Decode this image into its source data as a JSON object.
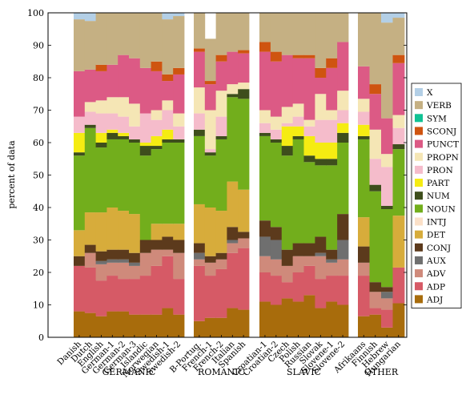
{
  "chart_data": {
    "type": "bar",
    "stacked": true,
    "ylabel": "percent of data",
    "ylim": [
      0,
      100
    ],
    "yticks": [
      0,
      10,
      20,
      30,
      40,
      50,
      60,
      70,
      80,
      90,
      100
    ],
    "grid": false,
    "legend_position": "right",
    "categories": [
      "ADJ",
      "ADP",
      "ADV",
      "AUX",
      "CONJ",
      "DET",
      "INTJ",
      "NOUN",
      "NUM",
      "PART",
      "PRON",
      "PROPN",
      "PUNCT",
      "SCONJ",
      "SYM",
      "VERB",
      "X"
    ],
    "colors": {
      "ADJ": "#a86c0c",
      "ADP": "#d65a66",
      "ADV": "#cf8a7b",
      "AUX": "#6f6f6f",
      "CONJ": "#5c3a1c",
      "DET": "#d7ac3b",
      "INTJ": "#fbe0c8",
      "NOUN": "#72ae1c",
      "NUM": "#3e4e1c",
      "PART": "#f5ec12",
      "PRON": "#f5bccb",
      "PROPN": "#f5e6b5",
      "PUNCT": "#dc5a85",
      "SCONJ": "#cf5410",
      "SYM": "#10c294",
      "VERB": "#c5b083",
      "X": "#b3cfe6"
    },
    "legend_entries": [
      "X",
      "VERB",
      "SYM",
      "SCONJ",
      "PUNCT",
      "PROPN",
      "PRON",
      "PART",
      "NUM",
      "NOUN",
      "INTJ",
      "DET",
      "CONJ",
      "AUX",
      "ADV",
      "ADP",
      "ADJ"
    ],
    "groups": [
      {
        "label": "GERMANIC",
        "languages": [
          "Danish",
          "Dutch",
          "English",
          "German-1",
          "German-2",
          "German-3",
          "Islandic",
          "Norwegian",
          "Swedish-1",
          "Swedish-2"
        ]
      },
      {
        "label": "ROMANIC",
        "languages": [
          "B-Portug.",
          "French-1",
          "French-2",
          "Italian",
          "Spanish"
        ]
      },
      {
        "label": "SLAVIC",
        "languages": [
          "Croatian-1",
          "Croatian-2",
          "Czech",
          "Polish",
          "Russian",
          "Slovak",
          "Slovene-1",
          "Slovene-2"
        ]
      },
      {
        "label": "OTHER",
        "languages": [
          "Afrikaans",
          "Finnish",
          "Hebrew",
          "Hungarian"
        ]
      }
    ],
    "series": [
      {
        "name": "Danish",
        "values": {
          "ADJ": 8,
          "ADP": 14,
          "ADV": 0,
          "AUX": 0,
          "CONJ": 3,
          "DET": 8,
          "INTJ": 0,
          "NOUN": 23,
          "NUM": 1,
          "PART": 6,
          "PRON": 5,
          "PROPN": 0,
          "PUNCT": 14,
          "SCONJ": 0,
          "SYM": 0,
          "VERB": 16,
          "X": 2
        }
      },
      {
        "name": "Dutch",
        "values": {
          "ADJ": 7.5,
          "ADP": 14,
          "ADV": 4.5,
          "AUX": 0,
          "CONJ": 2.5,
          "DET": 10,
          "INTJ": 0,
          "NOUN": 26,
          "NUM": 1,
          "PART": 0,
          "PRON": 4,
          "PROPN": 3,
          "PUNCT": 10,
          "SCONJ": 0,
          "SYM": 0,
          "VERB": 15,
          "X": 2.5
        }
      },
      {
        "name": "English",
        "values": {
          "ADJ": 6.5,
          "ADP": 11,
          "ADV": 5,
          "AUX": 1,
          "CONJ": 3,
          "DET": 12,
          "INTJ": 0,
          "NOUN": 20,
          "NUM": 1.5,
          "PART": 3,
          "PRON": 6,
          "PROPN": 4,
          "PUNCT": 9,
          "SCONJ": 2,
          "SYM": 0,
          "VERB": 16,
          "X": 0
        }
      },
      {
        "name": "German-1",
        "values": {
          "ADJ": 8,
          "ADP": 11,
          "ADV": 4,
          "AUX": 1,
          "CONJ": 3,
          "DET": 13,
          "INTJ": 0,
          "NOUN": 21,
          "NUM": 2,
          "PART": 1,
          "PRON": 5,
          "PROPN": 5,
          "PUNCT": 10,
          "SCONJ": 0,
          "SYM": 0,
          "VERB": 16,
          "X": 0
        }
      },
      {
        "name": "German-2",
        "values": {
          "ADJ": 8,
          "ADP": 10,
          "ADV": 5,
          "AUX": 1,
          "CONJ": 3,
          "DET": 12,
          "INTJ": 0,
          "NOUN": 22,
          "NUM": 1,
          "PART": 1,
          "PRON": 5,
          "PROPN": 6,
          "PUNCT": 13,
          "SCONJ": 0,
          "SYM": 0,
          "VERB": 13,
          "X": 0
        }
      },
      {
        "name": "German-3",
        "values": {
          "ADJ": 7,
          "ADP": 11,
          "ADV": 4,
          "AUX": 1,
          "CONJ": 3,
          "DET": 12,
          "INTJ": 0,
          "NOUN": 22,
          "NUM": 1,
          "PART": 0,
          "PRON": 4,
          "PROPN": 7,
          "PUNCT": 14,
          "SCONJ": 0,
          "SYM": 0,
          "VERB": 14,
          "X": 0
        }
      },
      {
        "name": "Islandic",
        "values": {
          "ADJ": 7,
          "ADP": 12,
          "ADV": 7,
          "AUX": 0,
          "CONJ": 4,
          "DET": 0,
          "INTJ": 0,
          "NOUN": 26,
          "NUM": 3,
          "PART": 1,
          "PRON": 9,
          "PROPN": 0,
          "PUNCT": 14,
          "SCONJ": 0,
          "SYM": 0,
          "VERB": 17,
          "X": 0
        }
      },
      {
        "name": "Norwegian",
        "values": {
          "ADJ": 7,
          "ADP": 15,
          "ADV": 5,
          "AUX": 0,
          "CONJ": 3,
          "DET": 5,
          "INTJ": 0,
          "NOUN": 23,
          "NUM": 1,
          "PART": 3,
          "PRON": 5,
          "PROPN": 3,
          "PUNCT": 12,
          "SCONJ": 3,
          "SYM": 0,
          "VERB": 15,
          "X": 0
        }
      },
      {
        "name": "Swedish-1",
        "values": {
          "ADJ": 9,
          "ADP": 16,
          "ADV": 2,
          "AUX": 0,
          "CONJ": 4,
          "DET": 4,
          "INTJ": 0,
          "NOUN": 25,
          "NUM": 1,
          "PART": 3,
          "PRON": 6,
          "PROPN": 3,
          "PUNCT": 6,
          "SCONJ": 2,
          "SYM": 0,
          "VERB": 17,
          "X": 2
        }
      },
      {
        "name": "Swedish-2",
        "values": {
          "ADJ": 7,
          "ADP": 11,
          "ADV": 8,
          "AUX": 0,
          "CONJ": 4,
          "DET": 5,
          "INTJ": 0,
          "NOUN": 25,
          "NUM": 1,
          "PART": 0,
          "PRON": 4,
          "PROPN": 4,
          "PUNCT": 12,
          "SCONJ": 2,
          "SYM": 0,
          "VERB": 16,
          "X": 1
        }
      },
      {
        "name": "B-Portug.",
        "values": {
          "ADJ": 5,
          "ADP": 17,
          "ADV": 2,
          "AUX": 2,
          "CONJ": 3,
          "DET": 12,
          "INTJ": 0,
          "NOUN": 21,
          "NUM": 2,
          "PART": 0,
          "PRON": 5,
          "PROPN": 8,
          "PUNCT": 11,
          "SCONJ": 1,
          "SYM": 0,
          "VERB": 11,
          "X": 0
        }
      },
      {
        "name": "French-1",
        "values": {
          "ADJ": 6,
          "ADP": 13,
          "ADV": 4,
          "AUX": 0,
          "CONJ": 2,
          "DET": 15,
          "INTJ": 0,
          "NOUN": 16,
          "NUM": 1,
          "PART": 0,
          "PRON": 1,
          "PROPN": 12,
          "PUNCT": 8,
          "SCONJ": 1,
          "SYM": 0,
          "VERB": 13,
          "X": 0
        }
      },
      {
        "name": "French-2",
        "values": {
          "ADJ": 6,
          "ADP": 15,
          "ADV": 3,
          "AUX": 0,
          "CONJ": 2,
          "DET": 13,
          "INTJ": 0,
          "NOUN": 22,
          "NUM": 1,
          "PART": 0,
          "PRON": 6,
          "PROPN": 8,
          "PUNCT": 9,
          "SCONJ": 2,
          "SYM": 0,
          "VERB": 13,
          "X": 0
        }
      },
      {
        "name": "Italian",
        "values": {
          "ADJ": 9,
          "ADP": 17,
          "ADV": 3,
          "AUX": 1,
          "CONJ": 4,
          "DET": 14,
          "INTJ": 0,
          "NOUN": 26,
          "NUM": 1,
          "PART": 0,
          "PRON": 0,
          "PROPN": 3,
          "PUNCT": 10,
          "SCONJ": 0,
          "SYM": 0,
          "VERB": 12,
          "X": 0
        }
      },
      {
        "name": "Spanish",
        "values": {
          "ADJ": 8.5,
          "ADP": 19,
          "ADV": 3,
          "AUX": 0,
          "CONJ": 2,
          "DET": 13,
          "INTJ": 0,
          "NOUN": 28,
          "NUM": 3,
          "PART": 0,
          "PRON": 0,
          "PROPN": 2,
          "PUNCT": 9,
          "SCONJ": 1,
          "SYM": 0,
          "VERB": 11.5,
          "X": 0
        }
      },
      {
        "name": "Croatian-1",
        "values": {
          "ADJ": 11,
          "ADP": 9,
          "ADV": 5,
          "AUX": 6,
          "CONJ": 5,
          "DET": 0,
          "INTJ": 0,
          "NOUN": 26,
          "NUM": 1,
          "PART": 0,
          "PRON": 3,
          "PROPN": 4,
          "PUNCT": 18,
          "SCONJ": 3,
          "SYM": 0,
          "VERB": 9,
          "X": 0
        }
      },
      {
        "name": "Croatian-2",
        "values": {
          "ADJ": 10,
          "ADP": 9,
          "ADV": 5,
          "AUX": 6,
          "CONJ": 4,
          "DET": 0,
          "INTJ": 0,
          "NOUN": 26,
          "NUM": 1,
          "PART": 0,
          "PRON": 3,
          "PROPN": 4,
          "PUNCT": 17,
          "SCONJ": 3,
          "SYM": 0,
          "VERB": 12,
          "X": 0
        }
      },
      {
        "name": "Czech",
        "values": {
          "ADJ": 12,
          "ADP": 5,
          "ADV": 5,
          "AUX": 0,
          "CONJ": 5,
          "DET": 0,
          "INTJ": 0,
          "NOUN": 29,
          "NUM": 3,
          "PART": 6,
          "PRON": 1,
          "PROPN": 5,
          "PUNCT": 16,
          "SCONJ": 0,
          "SYM": 0,
          "VERB": 13,
          "X": 0
        }
      },
      {
        "name": "Polish",
        "values": {
          "ADJ": 11,
          "ADP": 9,
          "ADV": 5,
          "AUX": 0,
          "CONJ": 4,
          "DET": 0,
          "INTJ": 0,
          "NOUN": 32,
          "NUM": 1,
          "PART": 3,
          "PRON": 3,
          "PROPN": 4,
          "PUNCT": 14,
          "SCONJ": 1,
          "SYM": 0,
          "VERB": 13,
          "X": 0
        }
      },
      {
        "name": "Russian",
        "values": {
          "ADJ": 13,
          "ADP": 9,
          "ADV": 3,
          "AUX": 0,
          "CONJ": 4,
          "DET": 0,
          "INTJ": 0,
          "NOUN": 25,
          "NUM": 2,
          "PART": 6,
          "PRON": 3,
          "PROPN": 2,
          "PUNCT": 19,
          "SCONJ": 1,
          "SYM": 0,
          "VERB": 13,
          "X": 0
        }
      },
      {
        "name": "Slovak",
        "values": {
          "ADJ": 9,
          "ADP": 9,
          "ADV": 7,
          "AUX": 1,
          "CONJ": 5,
          "DET": 0,
          "INTJ": 0,
          "NOUN": 22,
          "NUM": 2,
          "PART": 5,
          "PRON": 7,
          "PROPN": 8,
          "PUNCT": 5,
          "SCONJ": 3,
          "SYM": 0,
          "VERB": 17,
          "X": 0
        }
      },
      {
        "name": "Slovene-1",
        "values": {
          "ADJ": 11,
          "ADP": 8,
          "ADV": 4,
          "AUX": 1,
          "CONJ": 3,
          "DET": 0,
          "INTJ": 0,
          "NOUN": 26,
          "NUM": 2,
          "PART": 5,
          "PRON": 7,
          "PROPN": 3,
          "PUNCT": 13,
          "SCONJ": 3,
          "SYM": 0,
          "VERB": 14,
          "X": 0
        }
      },
      {
        "name": "Slovene-2",
        "values": {
          "ADJ": 10,
          "ADP": 9,
          "ADV": 5,
          "AUX": 6,
          "CONJ": 8,
          "DET": 0,
          "INTJ": 0,
          "NOUN": 22,
          "NUM": 3,
          "PART": 3,
          "PRON": 4,
          "PROPN": 6,
          "PUNCT": 15,
          "SCONJ": 0,
          "SYM": 0,
          "VERB": 9,
          "X": 0
        }
      },
      {
        "name": "Afrikaans",
        "values": {
          "ADJ": 6.5,
          "ADP": 12.5,
          "ADV": 4,
          "AUX": 0,
          "CONJ": 5,
          "DET": 9,
          "INTJ": 0,
          "NOUN": 24,
          "NUM": 1,
          "PART": 3.5,
          "PRON": 4,
          "PROPN": 4,
          "PUNCT": 10,
          "SCONJ": 0,
          "SYM": 0,
          "VERB": 16.5,
          "X": 0
        }
      },
      {
        "name": "Finnish",
        "values": {
          "ADJ": 7,
          "ADP": 2,
          "ADV": 5,
          "AUX": 0,
          "CONJ": 3,
          "DET": 0,
          "INTJ": 0,
          "NOUN": 28,
          "NUM": 2,
          "PART": 0,
          "PRON": 8,
          "PROPN": 9,
          "PUNCT": 11,
          "SCONJ": 3,
          "SYM": 0,
          "VERB": 22,
          "X": 0
        }
      },
      {
        "name": "Hebrew",
        "values": {
          "ADJ": 3,
          "ADP": 5.5,
          "ADV": 3.5,
          "AUX": 2,
          "CONJ": 1.5,
          "DET": 0,
          "INTJ": 0,
          "NOUN": 24,
          "NUM": 1,
          "PART": 0,
          "PRON": 12,
          "PROPN": 4,
          "PUNCT": 11,
          "SCONJ": 0,
          "SYM": 0,
          "VERB": 29.5,
          "X": 3
        }
      },
      {
        "name": "Hungarian",
        "values": {
          "ADJ": 10.5,
          "ADP": 11,
          "ADV": 0,
          "AUX": 0,
          "CONJ": 0,
          "DET": 16,
          "INTJ": 0,
          "NOUN": 20.5,
          "NUM": 1.5,
          "PART": 0,
          "PRON": 5,
          "PROPN": 4,
          "PUNCT": 16,
          "SCONJ": 2.5,
          "SYM": 0,
          "VERB": 11.5,
          "X": 1.5
        }
      }
    ]
  }
}
